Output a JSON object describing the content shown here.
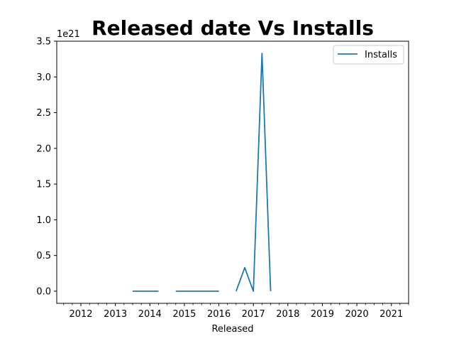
{
  "chart_data": {
    "type": "line",
    "title": "Released date Vs Installs",
    "xlabel": "Released",
    "ylabel": "",
    "y_offset_label": "1e21",
    "y_scale_exponent": 21,
    "xlim": [
      2011.3,
      2021.5
    ],
    "ylim": [
      -0.17,
      3.5
    ],
    "x_ticks": [
      2012,
      2013,
      2014,
      2015,
      2016,
      2017,
      2018,
      2019,
      2020,
      2021
    ],
    "x_tick_labels": [
      "2012",
      "2013",
      "2014",
      "2015",
      "2016",
      "2017",
      "2018",
      "2019",
      "2020",
      "2021"
    ],
    "y_ticks": [
      0.0,
      0.5,
      1.0,
      1.5,
      2.0,
      2.5,
      3.0,
      3.5
    ],
    "y_tick_labels": [
      "0.0",
      "0.5",
      "1.0",
      "1.5",
      "2.0",
      "2.5",
      "3.0",
      "3.5"
    ],
    "grid": false,
    "legend_position": "top-right",
    "series": [
      {
        "name": "Installs",
        "color": "#1f77b4",
        "segments": [
          {
            "x": [
              2013.5,
              2014.25
            ],
            "y": [
              0.0,
              0.0
            ]
          },
          {
            "x": [
              2014.75,
              2016.0
            ],
            "y": [
              0.0,
              0.0
            ]
          },
          {
            "x": [
              2016.5,
              2016.75,
              2017.0,
              2017.25,
              2017.5
            ],
            "y": [
              0.0,
              0.33,
              0.0,
              3.33,
              0.0
            ]
          }
        ]
      }
    ]
  }
}
